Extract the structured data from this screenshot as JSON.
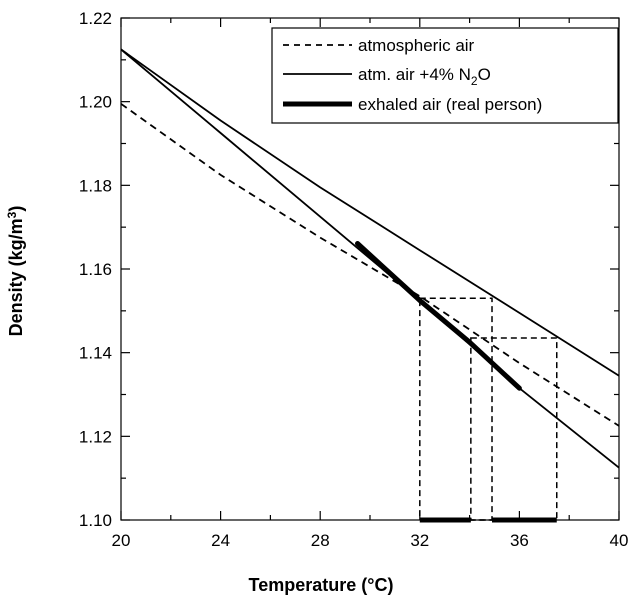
{
  "chart_data": {
    "type": "line",
    "title": "",
    "xlabel": "Temperature (°C)",
    "ylabel_main": "Density (kg/m",
    "ylabel_sup": "3",
    "ylabel_close": ")",
    "xlim": [
      20,
      40
    ],
    "ylim": [
      1.1,
      1.22
    ],
    "xticks": [
      20,
      24,
      28,
      32,
      36,
      40
    ],
    "xtick_labels": [
      "20",
      "24",
      "28",
      "32",
      "36",
      "40"
    ],
    "yticks": [
      1.1,
      1.12,
      1.14,
      1.16,
      1.18,
      1.2,
      1.22
    ],
    "ytick_labels": [
      "1.10",
      "1.12",
      "1.14",
      "1.16",
      "1.18",
      "1.20",
      "1.22"
    ],
    "grid": false,
    "legend_position": "top-right",
    "series": [
      {
        "name": "atmospheric air",
        "style": "dashed",
        "color": "#000000",
        "x": [
          20,
          24,
          28,
          32,
          36,
          40
        ],
        "y": [
          1.1995,
          1.1825,
          1.1675,
          1.1535,
          1.1375,
          1.1225
        ]
      },
      {
        "name_main": "atm. air +4% N",
        "name_sub": "2",
        "name_tail": "O",
        "style": "solid",
        "color": "#000000",
        "x": [
          20,
          24,
          28,
          32,
          36,
          40
        ],
        "y": [
          1.2125,
          1.1955,
          1.1795,
          1.1645,
          1.1495,
          1.1345
        ]
      },
      {
        "name": "exhaled air (real person)",
        "style": "solid-thick",
        "color": "#000000",
        "x": [
          29.5,
          32,
          34,
          36
        ],
        "y": [
          1.1661,
          1.1525,
          1.1425,
          1.1315
        ]
      },
      {
        "name": "",
        "style": "solid",
        "color": "#000000",
        "x": [
          20,
          24,
          28,
          32,
          36,
          40
        ],
        "y": [
          1.2125,
          1.1925,
          1.1725,
          1.1525,
          1.1315,
          1.1125
        ]
      }
    ],
    "annotations": [
      {
        "type": "dashed-rect",
        "x": [
          32,
          34.9
        ],
        "y": [
          1.1,
          1.153
        ]
      },
      {
        "type": "dashed-rect",
        "x": [
          34.05,
          37.5
        ],
        "y": [
          1.1,
          1.1435
        ]
      },
      {
        "type": "thick-segment",
        "x": [
          32,
          34.05
        ],
        "y": 1.1
      },
      {
        "type": "thick-segment",
        "x": [
          34.9,
          37.5
        ],
        "y": 1.1
      }
    ]
  }
}
